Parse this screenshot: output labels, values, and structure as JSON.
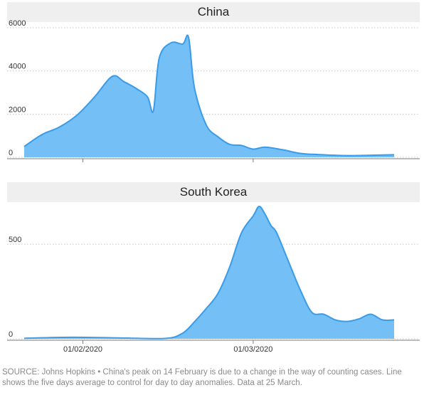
{
  "chart_data": [
    {
      "type": "area",
      "title": "China",
      "ylim": [
        0,
        6000
      ],
      "yticks": [
        "0",
        "2000",
        "4000",
        "6000"
      ],
      "xticks": [],
      "grid": true,
      "color": "#74c0f6",
      "line_color": "#3a9be8",
      "x_dates": [
        "2020-01-22",
        "2020-01-25",
        "2020-01-28",
        "2020-01-31",
        "2020-02-03",
        "2020-02-06",
        "2020-02-08",
        "2020-02-10",
        "2020-02-12",
        "2020-02-13",
        "2020-02-14",
        "2020-02-16",
        "2020-02-18",
        "2020-02-19",
        "2020-02-20",
        "2020-02-22",
        "2020-02-24",
        "2020-02-26",
        "2020-02-28",
        "2020-03-01",
        "2020-03-03",
        "2020-03-06",
        "2020-03-09",
        "2020-03-12",
        "2020-03-17",
        "2020-03-21",
        "2020-03-25"
      ],
      "values": [
        500,
        1050,
        1400,
        1950,
        2800,
        3750,
        3500,
        3200,
        2800,
        2150,
        4600,
        5300,
        5250,
        5550,
        3200,
        1500,
        950,
        600,
        550,
        380,
        470,
        350,
        180,
        130,
        80,
        95,
        120
      ]
    },
    {
      "type": "area",
      "title": "South Korea",
      "ylim": [
        0,
        700
      ],
      "yticks": [
        "0",
        "500"
      ],
      "xticks": [
        "01/02/2020",
        "01/03/2020"
      ],
      "grid": true,
      "color": "#74c0f6",
      "line_color": "#3a9be8",
      "x_dates": [
        "2020-01-22",
        "2020-01-30",
        "2020-02-07",
        "2020-02-15",
        "2020-02-18",
        "2020-02-20",
        "2020-02-22",
        "2020-02-24",
        "2020-02-26",
        "2020-02-28",
        "2020-03-01",
        "2020-03-02",
        "2020-03-03",
        "2020-03-04",
        "2020-03-05",
        "2020-03-07",
        "2020-03-09",
        "2020-03-11",
        "2020-03-13",
        "2020-03-15",
        "2020-03-17",
        "2020-03-19",
        "2020-03-21",
        "2020-03-23",
        "2020-03-25"
      ],
      "values": [
        3,
        8,
        5,
        2,
        30,
        90,
        160,
        240,
        380,
        560,
        650,
        700,
        660,
        600,
        560,
        410,
        260,
        140,
        130,
        100,
        92,
        105,
        130,
        100,
        100
      ]
    }
  ],
  "source_text": "SOURCE: Johns Hopkins • China's peak on 14 February is due to a change in the way of counting cases. Line shows the five days average to control for day to day anomalies. Data at 25 March."
}
